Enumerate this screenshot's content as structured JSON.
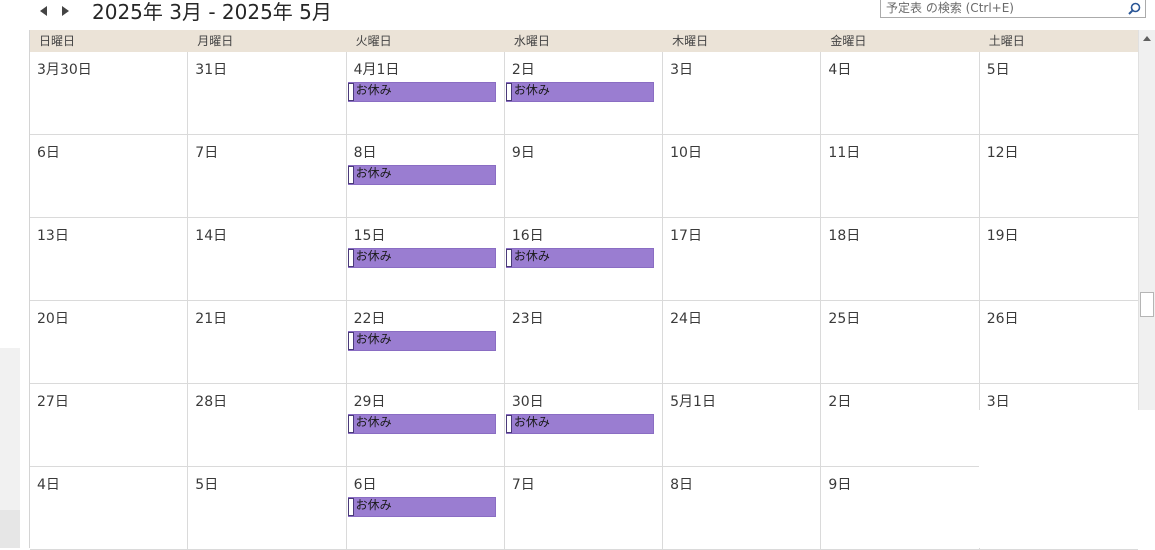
{
  "nav": {
    "prev_icon": "triangle-left-icon",
    "next_icon": "triangle-right-icon"
  },
  "title": "2025年 3月 - 2025年 5月",
  "search": {
    "placeholder": "予定表 の検索 (Ctrl+E)",
    "icon": "search-icon"
  },
  "weekdays": [
    "日曜日",
    "月曜日",
    "火曜日",
    "水曜日",
    "木曜日",
    "金曜日",
    "土曜日"
  ],
  "event_color": "#9a7dd1",
  "weeks": [
    [
      {
        "date": "3月30日"
      },
      {
        "date": "31日"
      },
      {
        "date": "4月1日",
        "event": "お休み"
      },
      {
        "date": "2日",
        "event": "お休み"
      },
      {
        "date": "3日"
      },
      {
        "date": "4日"
      },
      {
        "date": "5日"
      }
    ],
    [
      {
        "date": "6日"
      },
      {
        "date": "7日"
      },
      {
        "date": "8日",
        "event": "お休み"
      },
      {
        "date": "9日"
      },
      {
        "date": "10日"
      },
      {
        "date": "11日"
      },
      {
        "date": "12日"
      }
    ],
    [
      {
        "date": "13日"
      },
      {
        "date": "14日"
      },
      {
        "date": "15日",
        "event": "お休み"
      },
      {
        "date": "16日",
        "event": "お休み"
      },
      {
        "date": "17日"
      },
      {
        "date": "18日"
      },
      {
        "date": "19日"
      }
    ],
    [
      {
        "date": "20日"
      },
      {
        "date": "21日"
      },
      {
        "date": "22日",
        "event": "お休み"
      },
      {
        "date": "23日"
      },
      {
        "date": "24日"
      },
      {
        "date": "25日"
      },
      {
        "date": "26日"
      }
    ],
    [
      {
        "date": "27日"
      },
      {
        "date": "28日"
      },
      {
        "date": "29日",
        "event": "お休み"
      },
      {
        "date": "30日",
        "event": "お休み"
      },
      {
        "date": "5月1日"
      },
      {
        "date": "2日"
      },
      {
        "date": "3日"
      }
    ],
    [
      {
        "date": "4日"
      },
      {
        "date": "5日"
      },
      {
        "date": "6日",
        "event": "お休み"
      },
      {
        "date": "7日"
      },
      {
        "date": "8日"
      },
      {
        "date": "9日"
      },
      {
        "date": ""
      }
    ]
  ]
}
